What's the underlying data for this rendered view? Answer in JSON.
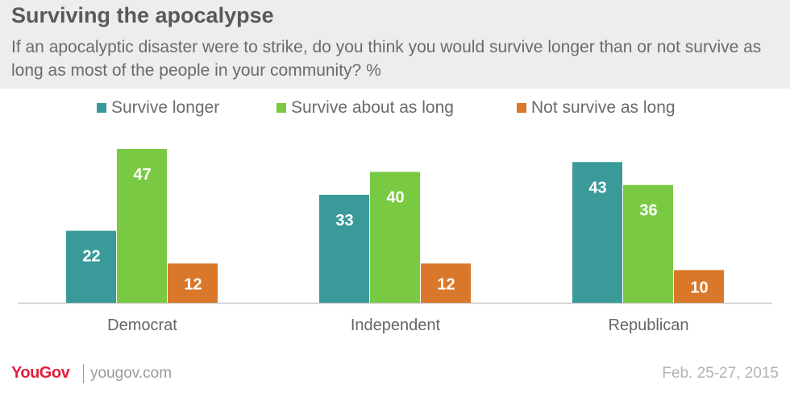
{
  "header": {
    "title": "Surviving the apocalypse",
    "subtitle": "If an apocalyptic disaster were to strike, do you think you would survive longer than or not survive as long as most of the people in your community? %"
  },
  "legend": [
    {
      "label": "Survive longer",
      "color": "#3a9a9a"
    },
    {
      "label": "Survive about as long",
      "color": "#7ac943"
    },
    {
      "label": "Not survive as long",
      "color": "#d9782a"
    }
  ],
  "chart_data": {
    "type": "bar",
    "categories": [
      "Democrat",
      "Independent",
      "Republican"
    ],
    "series": [
      {
        "name": "Survive longer",
        "values": [
          22,
          33,
          43
        ],
        "color": "#3a9a9a"
      },
      {
        "name": "Survive about as long",
        "values": [
          47,
          40,
          36
        ],
        "color": "#7ac943"
      },
      {
        "name": "Not survive as long",
        "values": [
          12,
          12,
          10
        ],
        "color": "#d9782a"
      }
    ],
    "ylim": [
      0,
      47
    ],
    "grid": false,
    "legend_position": "top"
  },
  "footer": {
    "logo": "YouGov",
    "site": "yougov.com",
    "date": "Feb. 25-27, 2015"
  }
}
